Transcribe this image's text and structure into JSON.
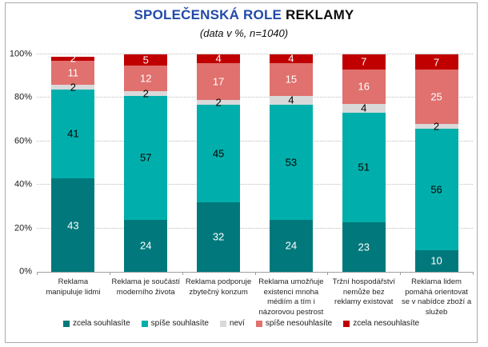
{
  "chart_data": {
    "type": "bar",
    "stacked": true,
    "unit": "%",
    "title_accent": "SPOLEČENSKÁ ROLE",
    "title_rest": "REKLAMY",
    "subtitle": "(data v %, n=1040)",
    "categories": [
      [
        "Reklama",
        "manipuluje lidmi"
      ],
      [
        "Reklama je součástí",
        "moderního života"
      ],
      [
        "Reklama podporuje",
        "zbytečný konzum"
      ],
      [
        "Reklama umožňuje",
        "existenci mnoha",
        "médiím a tím i",
        "názorovou pestrost"
      ],
      [
        "Tržní hospodářství",
        "nemůže bez",
        "reklamy existovat"
      ],
      [
        "Reklama lidem",
        "pomáhá orientovat",
        "se v nabídce zboží a",
        "služeb"
      ]
    ],
    "series": [
      {
        "name": "zcela souhlasíte",
        "color": "#01797c",
        "label_color": "#ffffff",
        "values": [
          43,
          24,
          32,
          24,
          23,
          10
        ]
      },
      {
        "name": "spíše souhlasíte",
        "color": "#00afab",
        "label_color": "#000000",
        "values": [
          41,
          57,
          45,
          53,
          51,
          56
        ]
      },
      {
        "name": "neví",
        "color": "#d9d9d9",
        "label_color": "#000000",
        "values": [
          2,
          2,
          2,
          4,
          4,
          2
        ]
      },
      {
        "name": "spíše nesouhlasíte",
        "color": "#e0716e",
        "label_color": "#ffffff",
        "values": [
          11,
          12,
          17,
          15,
          16,
          25
        ]
      },
      {
        "name": "zcela nesouhlasíte",
        "color": "#c00000",
        "label_color": "#ffffff",
        "values": [
          2,
          5,
          4,
          4,
          7,
          7
        ]
      }
    ],
    "y_axis": {
      "min": 0,
      "max": 100,
      "tick_labels": [
        "0%",
        "20%",
        "40%",
        "60%",
        "80%",
        "100%"
      ],
      "gridlines": "dotted"
    },
    "legend_position": "bottom",
    "colors": {
      "title_accent": "#2149a8",
      "axis_line": "#9e9e9e",
      "gridline": "#bdbdbd",
      "frame_border": "#aaaaaa"
    }
  }
}
